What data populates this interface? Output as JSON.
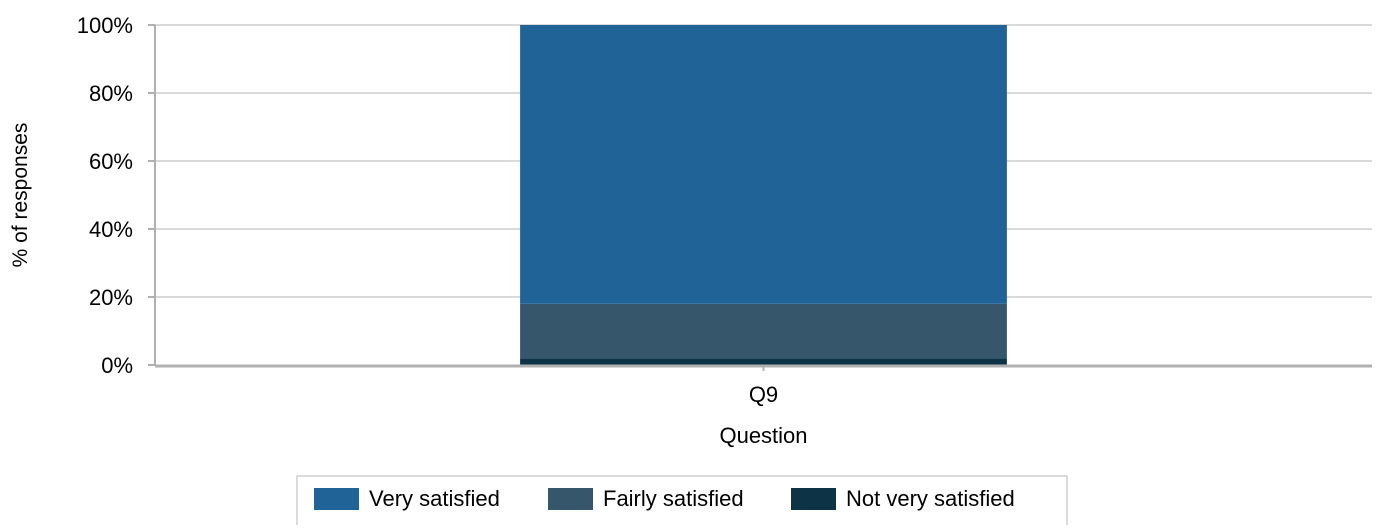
{
  "chart_data": {
    "type": "bar",
    "stacked": true,
    "categories": [
      "Q9"
    ],
    "series": [
      {
        "name": "Not very satisfied",
        "values": [
          2
        ],
        "color": "#0d3446"
      },
      {
        "name": "Fairly satisfied",
        "values": [
          16
        ],
        "color": "#36566c"
      },
      {
        "name": "Very satisfied",
        "values": [
          82
        ],
        "color": "#206497"
      }
    ],
    "xlabel": "Question",
    "ylabel": "% of responses",
    "ylim": [
      0,
      100
    ],
    "yticks": [
      "0%",
      "20%",
      "40%",
      "60%",
      "80%",
      "100%"
    ],
    "grid": true,
    "legend": {
      "position": "bottom-center",
      "order": [
        "Very satisfied",
        "Fairly satisfied",
        "Not very satisfied"
      ]
    },
    "colors": {
      "gridline": "#d9d9d9",
      "axis": "#b0b0b0",
      "text": "#000000"
    }
  }
}
